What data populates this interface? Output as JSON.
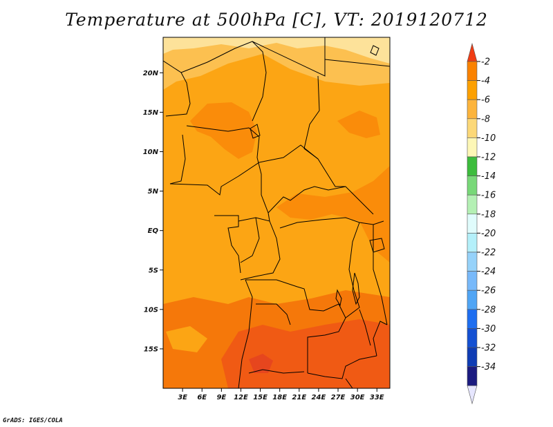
{
  "title": "Temperature at 500hPa [C], VT: 2019120712",
  "credit": "GrADS: IGES/COLA",
  "map": {
    "lat_ticks": [
      "20N",
      "15N",
      "10N",
      "5N",
      "EQ",
      "5S",
      "10S",
      "15S"
    ],
    "lon_ticks": [
      "3E",
      "6E",
      "9E",
      "12E",
      "15E",
      "18E",
      "21E",
      "24E",
      "27E",
      "30E",
      "33E"
    ],
    "lat_values": [
      20,
      15,
      10,
      5,
      0,
      -5,
      -10,
      -15
    ],
    "lon_values": [
      3,
      6,
      9,
      12,
      15,
      18,
      21,
      24,
      27,
      30,
      33
    ],
    "extent": {
      "lon_min": 0,
      "lon_max": 35,
      "lat_min": -20,
      "lat_max": 24.5
    }
  },
  "colorbar": {
    "levels": [
      "-2",
      "-4",
      "-6",
      "-8",
      "-10",
      "-12",
      "-14",
      "-16",
      "-18",
      "-20",
      "-22",
      "-24",
      "-26",
      "-28",
      "-30",
      "-32",
      "-34"
    ],
    "colors": [
      "#f03c14",
      "#fa8200",
      "#fca000",
      "#fcb43c",
      "#fcd878",
      "#fdf7b6",
      "#3cbc3c",
      "#78d878",
      "#b4f0b4",
      "#e0fcfc",
      "#b4f0fa",
      "#96d2fa",
      "#78b9fa",
      "#50a5f5",
      "#1e6ef0",
      "#1450d2",
      "#0f3cb4",
      "#1b1b80",
      "#e6e6ff"
    ]
  },
  "colors": {
    "warmest": "#f05a14",
    "warm": "#fa8c0a",
    "base": "#fca514",
    "cool": "#fcc050",
    "coolest": "#fde29a",
    "border": "#000000"
  }
}
